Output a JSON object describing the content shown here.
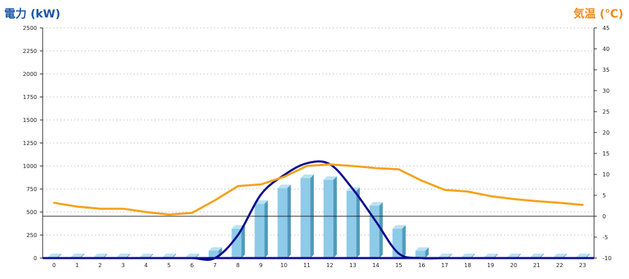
{
  "chart_data": {
    "type": "bar",
    "title_left": "電力 (kW)",
    "title_right": "気温 (℃)",
    "categories": [
      "0",
      "1",
      "2",
      "3",
      "4",
      "5",
      "6",
      "7",
      "8",
      "9",
      "10",
      "11",
      "12",
      "13",
      "14",
      "15",
      "16",
      "17",
      "18",
      "19",
      "20",
      "21",
      "22",
      "23"
    ],
    "y_left": {
      "min": 0,
      "max": 2500,
      "ticks": [
        0,
        250,
        500,
        750,
        1000,
        1250,
        1500,
        1750,
        2000,
        2250,
        2500
      ]
    },
    "y_right": {
      "min": -10,
      "max": 45,
      "ticks": [
        -10,
        -5,
        0,
        5,
        10,
        15,
        20,
        25,
        30,
        35,
        40,
        45
      ]
    },
    "grid": true,
    "series": [
      {
        "kind": "bar",
        "axis": "left",
        "values": [
          10,
          10,
          10,
          10,
          10,
          10,
          10,
          80,
          320,
          590,
          760,
          870,
          850,
          730,
          570,
          320,
          80,
          10,
          10,
          10,
          10,
          10,
          10,
          10
        ]
      },
      {
        "kind": "line",
        "axis": "left",
        "values": [
          0,
          0,
          0,
          0,
          0,
          0,
          0,
          0,
          250,
          690,
          900,
          1030,
          1020,
          750,
          400,
          50,
          0,
          0,
          0,
          0,
          0,
          0,
          0,
          0
        ]
      },
      {
        "kind": "line",
        "axis": "right",
        "values": [
          3.2,
          2.3,
          1.8,
          1.8,
          1.0,
          0.4,
          0.8,
          3.8,
          7.2,
          7.6,
          9.4,
          12.0,
          12.4,
          12.0,
          11.5,
          11.2,
          8.5,
          6.3,
          5.9,
          4.8,
          4.1,
          3.6,
          3.2,
          2.7
        ]
      }
    ],
    "colors": {
      "bar": "#8ecbe8",
      "bar_side": "#4f9bbd",
      "bar_top": "#b9e2f4",
      "output_line": "#0a0a8f",
      "temp_line": "#f5a21a",
      "title_left": "#1a56a8",
      "title_right": "#f08a1c"
    }
  }
}
